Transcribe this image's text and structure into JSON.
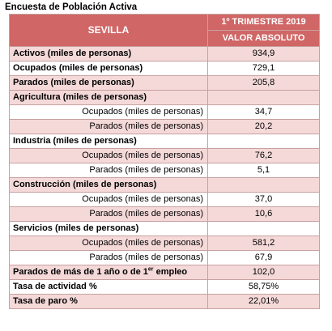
{
  "title": "Encuesta de Población Activa",
  "header": {
    "region": "SEVILLA",
    "period": "1º TRIMESTRE 2019",
    "measure": "VALOR ABSOLUTO"
  },
  "rows": [
    {
      "label": "Activos (miles de personas)",
      "value": "934,9"
    },
    {
      "label": "Ocupados (miles de personas)",
      "value": "729,1"
    },
    {
      "label": "Parados (miles de personas)",
      "value": "205,8"
    },
    {
      "label": "Agricultura (miles de personas)",
      "value": ""
    },
    {
      "label": "Ocupados (miles de personas)",
      "value": "34,7"
    },
    {
      "label": "Parados (miles de personas)",
      "value": "20,2"
    },
    {
      "label": "Industria (miles de personas)",
      "value": ""
    },
    {
      "label": "Ocupados (miles de personas)",
      "value": "76,2"
    },
    {
      "label": "Parados (miles de personas)",
      "value": "5,1"
    },
    {
      "label": "Construcción (miles de personas)",
      "value": ""
    },
    {
      "label": "Ocupados (miles de personas)",
      "value": "37,0"
    },
    {
      "label": "Parados (miles de personas)",
      "value": "10,6"
    },
    {
      "label": "Servicios (miles de personas)",
      "value": ""
    },
    {
      "label": "Ocupados (miles de personas)",
      "value": "581,2"
    },
    {
      "label": "Parados (miles de personas)",
      "value": "67,9"
    },
    {
      "label_pre": "Parados de más de 1 año o de 1",
      "label_sup": "er",
      "label_post": " empleo",
      "value": "102,0"
    },
    {
      "label": "Tasa de actividad %",
      "value": "58,75%"
    },
    {
      "label": "Tasa de paro %",
      "value": "22,01%"
    }
  ]
}
